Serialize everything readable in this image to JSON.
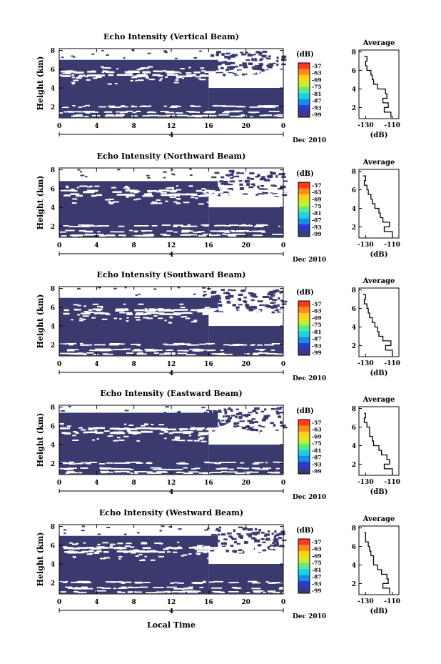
{
  "figure": {
    "xlabel": "Local Time",
    "date_label": "Dec 2010",
    "day_label": "4",
    "ylabel": "Height (km)",
    "colorbar_unit": "(dB)",
    "colorbar_ticks": [
      "-57",
      "-63",
      "-69",
      "-75",
      "-81",
      "-87",
      "-93",
      "-99"
    ],
    "colorbar_colors": [
      "#ff3a1a",
      "#ff8c1a",
      "#ffd21a",
      "#c8f028",
      "#5fe88a",
      "#1ad2e6",
      "#1a8ce6",
      "#2a3ad2",
      "#3a3a80"
    ],
    "profile_title": "Average",
    "profile_xlabel": "(dB)",
    "profile_xticks": [
      "-130",
      "-110"
    ],
    "field_color": "#3a3a6e"
  },
  "chart_data": [
    {
      "type": "heatmap",
      "title": "Echo Intensity (Vertical Beam)",
      "xlabel": "Local Time",
      "ylabel": "Height (km)",
      "x_ticks": [
        "0",
        "4",
        "8",
        "12",
        "16",
        "20",
        "0"
      ],
      "y_ticks": [
        "2",
        "4",
        "6",
        "8"
      ],
      "xlim": [
        0,
        24
      ],
      "ylim": [
        0.8,
        8.2
      ],
      "cloud_top_before_16h_km": 6.6,
      "cloud_top_after_16h_km": 4.0,
      "profile": {
        "title": "Average",
        "xlim": [
          -135,
          -105
        ],
        "ylim": [
          0.8,
          8.2
        ],
        "heights": [
          0.9,
          1.5,
          2.0,
          2.5,
          3.0,
          3.5,
          4.0,
          4.5,
          5.0,
          5.5,
          6.0,
          6.5,
          7.0,
          7.5
        ],
        "values": [
          -111,
          -116,
          -113,
          -117,
          -114,
          -115,
          -121,
          -124,
          -125,
          -126,
          -129,
          -130,
          -129,
          -131
        ]
      }
    },
    {
      "type": "heatmap",
      "title": "Echo Intensity (Northward Beam)",
      "xlabel": "Local Time",
      "ylabel": "Height (km)",
      "x_ticks": [
        "0",
        "4",
        "8",
        "12",
        "16",
        "20",
        "0"
      ],
      "y_ticks": [
        "2",
        "4",
        "6",
        "8"
      ],
      "xlim": [
        0,
        24
      ],
      "ylim": [
        0.8,
        8.2
      ],
      "cloud_top_before_16h_km": 6.4,
      "cloud_top_after_16h_km": 4.0,
      "profile": {
        "title": "Average",
        "xlim": [
          -135,
          -105
        ],
        "ylim": [
          0.8,
          8.2
        ],
        "heights": [
          0.9,
          1.5,
          2.0,
          2.5,
          3.0,
          3.5,
          4.0,
          4.5,
          5.0,
          5.5,
          6.0,
          6.5,
          7.0,
          7.5
        ],
        "values": [
          -110,
          -116,
          -112,
          -117,
          -119,
          -120,
          -123,
          -125,
          -126,
          -128,
          -129,
          -131,
          -130,
          -132
        ]
      }
    },
    {
      "type": "heatmap",
      "title": "Echo Intensity (Southward Beam)",
      "xlabel": "Local Time",
      "ylabel": "Height (km)",
      "x_ticks": [
        "0",
        "4",
        "8",
        "12",
        "16",
        "20",
        "0"
      ],
      "y_ticks": [
        "2",
        "4",
        "6",
        "8"
      ],
      "xlim": [
        0,
        24
      ],
      "ylim": [
        0.8,
        8.2
      ],
      "cloud_top_before_16h_km": 6.6,
      "cloud_top_after_16h_km": 4.0,
      "profile": {
        "title": "Average",
        "xlim": [
          -135,
          -105
        ],
        "ylim": [
          0.8,
          8.2
        ],
        "heights": [
          0.9,
          1.5,
          2.0,
          2.5,
          3.0,
          3.5,
          4.0,
          4.5,
          5.0,
          5.5,
          6.0,
          6.5,
          7.0,
          7.5
        ],
        "values": [
          -110,
          -115,
          -111,
          -117,
          -120,
          -121,
          -123,
          -125,
          -127,
          -128,
          -129,
          -131,
          -130,
          -132
        ]
      }
    },
    {
      "type": "heatmap",
      "title": "Echo Intensity (Eastward Beam)",
      "xlabel": "Local Time",
      "ylabel": "Height (km)",
      "x_ticks": [
        "0",
        "4",
        "8",
        "12",
        "16",
        "20",
        "0"
      ],
      "y_ticks": [
        "2",
        "4",
        "6",
        "8"
      ],
      "xlim": [
        0,
        24
      ],
      "ylim": [
        0.8,
        8.2
      ],
      "cloud_top_before_16h_km": 7.0,
      "cloud_top_after_16h_km": 4.0,
      "profile": {
        "title": "Average",
        "xlim": [
          -135,
          -105
        ],
        "ylim": [
          0.8,
          8.2
        ],
        "heights": [
          0.9,
          1.5,
          2.0,
          2.5,
          3.0,
          3.5,
          4.0,
          4.5,
          5.0,
          5.5,
          6.0,
          6.5,
          7.0,
          7.5
        ],
        "values": [
          -110,
          -116,
          -112,
          -114,
          -118,
          -120,
          -124,
          -125,
          -127,
          -127,
          -129,
          -131,
          -130,
          -131
        ]
      }
    },
    {
      "type": "heatmap",
      "title": "Echo Intensity (Westward Beam)",
      "xlabel": "Local Time",
      "ylabel": "Height (km)",
      "x_ticks": [
        "0",
        "4",
        "8",
        "12",
        "16",
        "20",
        "0"
      ],
      "y_ticks": [
        "2",
        "4",
        "6",
        "8"
      ],
      "xlim": [
        0,
        24
      ],
      "ylim": [
        0.8,
        8.2
      ],
      "cloud_top_before_16h_km": 6.6,
      "cloud_top_after_16h_km": 4.0,
      "profile": {
        "title": "Average",
        "xlim": [
          -135,
          -105
        ],
        "ylim": [
          0.8,
          8.2
        ],
        "heights": [
          0.9,
          1.5,
          2.0,
          2.5,
          3.0,
          3.5,
          4.0,
          4.5,
          5.0,
          5.5,
          6.0,
          6.5,
          7.0,
          7.5
        ],
        "values": [
          -112,
          -117,
          -113,
          -114,
          -118,
          -121,
          -124,
          -124,
          -126,
          -127,
          -128,
          -130,
          -130,
          -131
        ]
      }
    }
  ]
}
